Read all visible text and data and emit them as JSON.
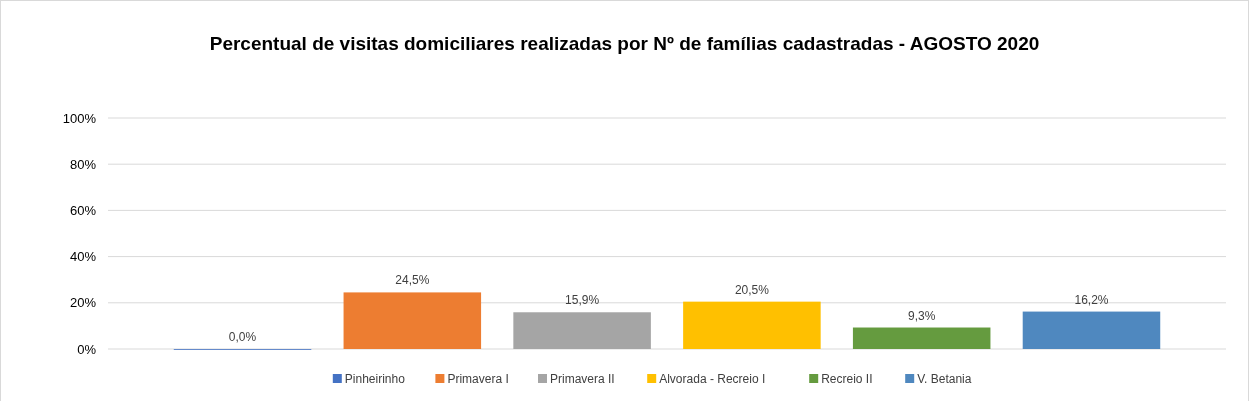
{
  "chart_data": {
    "type": "bar",
    "title": "Percentual de visitas domiciliares realizadas por Nº de famílias cadastradas - AGOSTO 2020",
    "categories": [
      null
    ],
    "series": [
      {
        "name": "Pinheirinho",
        "color": "#4472c4",
        "values": [
          0
        ],
        "value_labels": [
          "0,0%"
        ]
      },
      {
        "name": "Primavera I",
        "color": "#ed7d31",
        "values": [
          24.5
        ],
        "value_labels": [
          "24,5%"
        ]
      },
      {
        "name": "Primavera II",
        "color": "#a5a5a5",
        "values": [
          15.9
        ],
        "value_labels": [
          "15,9%"
        ]
      },
      {
        "name": "Alvorada - Recreio I",
        "color": "#ffc000",
        "values": [
          20.5
        ],
        "value_labels": [
          "20,5%"
        ]
      },
      {
        "name": "Recreio II",
        "color": "#659b3f",
        "values": [
          9.3
        ],
        "value_labels": [
          "9,3%"
        ]
      },
      {
        "name": "V. Betania",
        "color": "#4f88bf",
        "values": [
          16.2
        ],
        "value_labels": [
          "16,2%"
        ]
      }
    ],
    "ylim": [
      0,
      100
    ],
    "yticks": [
      {
        "value": 0,
        "label": "0%"
      },
      {
        "value": 20,
        "label": "20%"
      },
      {
        "value": 40,
        "label": "40%"
      },
      {
        "value": 60,
        "label": "60%"
      },
      {
        "value": 80,
        "label": "80%"
      },
      {
        "value": 100,
        "label": "100%"
      }
    ],
    "grid": "y",
    "legend": "bottom"
  }
}
